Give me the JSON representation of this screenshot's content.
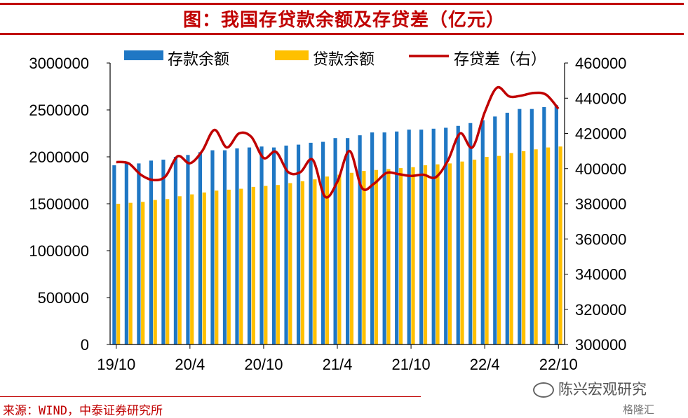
{
  "page_title": "图：我国存贷款余额及存贷差（亿元）",
  "source": "来源：WIND，中泰证券研究所",
  "watermark": "陈兴宏观研究",
  "watermark2": "格隆汇",
  "colors": {
    "deposit": "#1f77c4",
    "loan": "#ffc000",
    "spread": "#c00000",
    "accent": "#c00000"
  },
  "chart_data": {
    "type": "bar",
    "categories": [
      "19/10",
      "19/11",
      "19/12",
      "20/1",
      "20/2",
      "20/3",
      "20/4",
      "20/5",
      "20/6",
      "20/7",
      "20/8",
      "20/9",
      "20/10",
      "20/11",
      "20/12",
      "21/1",
      "21/2",
      "21/3",
      "21/4",
      "21/5",
      "21/6",
      "21/7",
      "21/8",
      "21/9",
      "21/10",
      "21/11",
      "21/12",
      "22/1",
      "22/2",
      "22/3",
      "22/4",
      "22/5",
      "22/6",
      "22/7",
      "22/8",
      "22/9",
      "22/10"
    ],
    "x_tick_labels": [
      "19/10",
      "20/4",
      "20/10",
      "21/4",
      "21/10",
      "22/4",
      "22/10"
    ],
    "series": [
      {
        "name": "存款余额",
        "axis": "left",
        "type": "bar",
        "values": [
          1910000,
          1930000,
          1930000,
          1960000,
          1970000,
          2000000,
          2020000,
          2050000,
          2070000,
          2070000,
          2090000,
          2100000,
          2110000,
          2100000,
          2120000,
          2130000,
          2150000,
          2160000,
          2200000,
          2200000,
          2230000,
          2260000,
          2260000,
          2270000,
          2290000,
          2290000,
          2300000,
          2310000,
          2330000,
          2360000,
          2390000,
          2430000,
          2470000,
          2510000,
          2510000,
          2530000,
          2550000
        ]
      },
      {
        "name": "贷款余额",
        "axis": "left",
        "type": "bar",
        "values": [
          1500000,
          1510000,
          1520000,
          1540000,
          1550000,
          1580000,
          1600000,
          1620000,
          1640000,
          1650000,
          1660000,
          1680000,
          1690000,
          1700000,
          1720000,
          1740000,
          1760000,
          1790000,
          1810000,
          1830000,
          1850000,
          1860000,
          1870000,
          1880000,
          1890000,
          1910000,
          1920000,
          1930000,
          1950000,
          1970000,
          2000000,
          2010000,
          2040000,
          2060000,
          2080000,
          2100000,
          2110000
        ]
      },
      {
        "name": "存贷差（右）",
        "axis": "right",
        "type": "line",
        "values": [
          403700,
          403000,
          396500,
          393500,
          395500,
          407000,
          403000,
          410000,
          422000,
          412000,
          420000,
          418000,
          406000,
          409500,
          398000,
          398000,
          405000,
          384000,
          392500,
          410000,
          389000,
          391500,
          397500,
          396800,
          395800,
          396500,
          395000,
          404500,
          420000,
          412000,
          432000,
          446000,
          441000,
          441500,
          443000,
          442000,
          434000
        ]
      }
    ],
    "ylim_left": [
      0,
      3000000
    ],
    "yticks_left": [
      0,
      500000,
      1000000,
      1500000,
      2000000,
      2500000,
      3000000
    ],
    "ylim_right": [
      300000,
      460000
    ],
    "yticks_right": [
      300000,
      320000,
      340000,
      360000,
      380000,
      400000,
      420000,
      440000,
      460000
    ],
    "legend_position": "top",
    "grid": false
  }
}
